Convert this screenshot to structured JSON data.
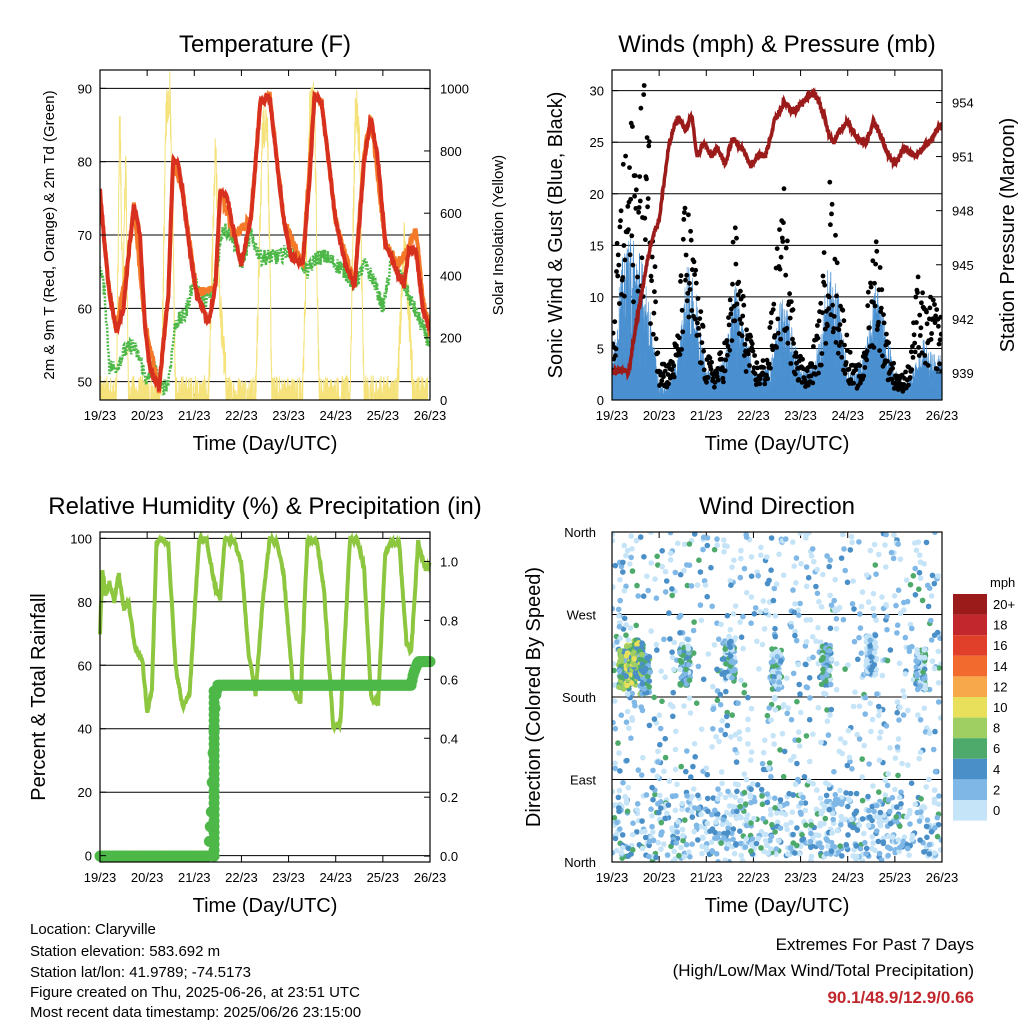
{
  "colors": {
    "temp_2m": "#d7301f",
    "temp_9m": "#f47a2a",
    "dewpoint": "#4db848",
    "solar": "#f5e27a",
    "wind": "#4a90d0",
    "gust": "#000000",
    "pressure": "#9b1b1b",
    "rh": "#8dc63f",
    "precip": "#4db848",
    "extremes": "#c1272d"
  },
  "info": {
    "location": "Location: Claryville",
    "elevation": "Station elevation: 583.692 m",
    "latlon": "Station lat/lon: 41.9789; -74.5173",
    "created": "Figure created on Thu, 2025-06-26, at 23:51 UTC",
    "recent": "Most recent data timestamp: 2025/06/26 23:15:00"
  },
  "extremes": {
    "title": "Extremes For Past 7 Days",
    "subtitle": "(High/Low/Max Wind/Total Precipitation)",
    "values": "90.1/48.9/12.9/0.66"
  },
  "chart_data": [
    {
      "id": "temperature",
      "type": "line",
      "title": "Temperature (F)",
      "xlabel": "Time (Day/UTC)",
      "ylabel": "2m & 9m T (Red, Orange) & 2m Td (Green)",
      "y2label": "Solar Insolation (Yellow)",
      "x_ticks": [
        "19/23",
        "20/23",
        "21/23",
        "22/23",
        "23/23",
        "24/23",
        "25/23",
        "26/23"
      ],
      "xlim": [
        0,
        7
      ],
      "ylim": [
        47.5,
        92.5
      ],
      "y_ticks": [
        50,
        60,
        70,
        80,
        90
      ],
      "y2lim": [
        0,
        1060
      ],
      "y2_ticks": [
        0,
        200,
        400,
        600,
        800,
        1000
      ],
      "series": [
        {
          "key": "temp_2m",
          "x": [
            0,
            0.08,
            0.2,
            0.35,
            0.5,
            0.6,
            0.72,
            0.85,
            0.95,
            1.05,
            1.25,
            1.45,
            1.55,
            1.65,
            1.75,
            1.9,
            2.05,
            2.3,
            2.45,
            2.55,
            2.7,
            2.85,
            3.0,
            3.2,
            3.4,
            3.6,
            3.75,
            3.9,
            4.05,
            4.3,
            4.45,
            4.55,
            4.7,
            4.85,
            5.0,
            5.2,
            5.4,
            5.6,
            5.75,
            5.9,
            6.05,
            6.3,
            6.45,
            6.55,
            6.7,
            6.85,
            7.0
          ],
          "y": [
            76,
            70,
            62,
            57,
            60,
            67,
            74,
            70,
            58,
            52,
            49,
            62,
            80,
            80,
            76,
            68,
            62,
            58,
            63,
            76,
            75,
            70,
            66,
            72,
            88,
            89,
            80,
            72,
            67,
            66,
            78,
            89,
            88,
            80,
            72,
            66,
            63,
            80,
            86,
            80,
            69,
            65,
            63,
            68,
            68,
            60,
            57
          ]
        },
        {
          "key": "temp_9m",
          "x": [
            0,
            0.2,
            0.35,
            0.6,
            0.72,
            0.95,
            1.25,
            1.45,
            1.55,
            1.75,
            2.05,
            2.45,
            2.55,
            2.85,
            3.2,
            3.4,
            3.6,
            3.9,
            4.3,
            4.55,
            4.7,
            5.0,
            5.4,
            5.6,
            5.75,
            6.05,
            6.3,
            6.55,
            6.7,
            6.85,
            7.0
          ],
          "y": [
            75,
            62,
            57,
            67,
            74,
            58,
            49,
            62,
            80,
            76,
            62,
            63,
            76,
            70,
            72,
            88,
            89,
            72,
            66,
            89,
            88,
            72,
            63,
            81,
            86,
            69,
            66,
            68,
            71,
            61,
            57
          ]
        },
        {
          "key": "dewpoint",
          "x": [
            0,
            0.1,
            0.2,
            0.35,
            0.5,
            0.7,
            0.85,
            1.0,
            1.15,
            1.3,
            1.45,
            1.6,
            1.8,
            2.0,
            2.2,
            2.4,
            2.6,
            2.8,
            3.0,
            3.2,
            3.4,
            3.6,
            3.8,
            4.0,
            4.2,
            4.4,
            4.6,
            4.8,
            5.0,
            5.2,
            5.4,
            5.6,
            5.8,
            6.0,
            6.2,
            6.4,
            6.6,
            6.8,
            7.0
          ],
          "y": [
            66,
            62,
            52,
            52,
            54,
            55,
            53,
            50,
            52,
            49,
            50,
            58,
            59,
            64,
            61,
            62,
            71,
            70,
            66,
            70,
            67,
            67,
            67,
            68,
            67,
            65,
            67,
            67,
            66,
            65,
            63,
            66,
            64,
            60,
            67,
            64,
            61,
            58,
            55
          ]
        },
        {
          "key": "solar",
          "x": [
            0,
            0.35,
            0.42,
            0.48,
            0.55,
            0.6,
            0.9,
            1.3,
            1.4,
            1.48,
            1.55,
            1.6,
            1.95,
            2.3,
            2.45,
            2.55,
            2.7,
            2.95,
            3.3,
            3.45,
            3.55,
            3.65,
            3.95,
            4.3,
            4.45,
            4.55,
            4.65,
            4.95,
            5.3,
            5.42,
            5.5,
            5.6,
            5.95,
            6.3,
            6.45,
            6.55,
            6.65,
            6.95
          ],
          "y": [
            0,
            0,
            950,
            300,
            800,
            0,
            0,
            0,
            920,
            1000,
            600,
            0,
            0,
            0,
            800,
            300,
            0,
            0,
            0,
            880,
            900,
            0,
            0,
            0,
            930,
            950,
            0,
            0,
            0,
            950,
            850,
            0,
            0,
            0,
            500,
            300,
            0,
            0
          ]
        }
      ]
    },
    {
      "id": "winds",
      "type": "scatter",
      "title": "Winds (mph) & Pressure (mb)",
      "xlabel": "Time (Day/UTC)",
      "ylabel": "Sonic Wind & Gust (Blue, Black)",
      "y2label": "Station Pressure (Maroon)",
      "x_ticks": [
        "19/23",
        "20/23",
        "21/23",
        "22/23",
        "23/23",
        "24/23",
        "25/23",
        "26/23"
      ],
      "xlim": [
        0,
        7
      ],
      "ylim": [
        0,
        32
      ],
      "y_ticks": [
        0,
        5,
        10,
        15,
        20,
        25,
        30
      ],
      "y2lim": [
        937.5,
        955.8
      ],
      "y2_ticks": [
        939,
        942,
        945,
        948,
        951,
        954
      ],
      "series": [
        {
          "key": "wind",
          "name": "Sonic Wind",
          "x": [
            0,
            0.2,
            0.4,
            0.6,
            0.8,
            1.0,
            1.2,
            1.4,
            1.6,
            1.8,
            2.0,
            2.2,
            2.4,
            2.6,
            2.8,
            3.0,
            3.2,
            3.4,
            3.6,
            3.8,
            4.0,
            4.2,
            4.4,
            4.6,
            4.8,
            5.0,
            5.2,
            5.4,
            5.6,
            5.8,
            6.0,
            6.2,
            6.4,
            6.6,
            6.8,
            7.0
          ],
          "y": [
            2,
            9,
            11,
            10,
            6,
            1,
            1,
            3,
            9,
            7,
            2,
            2,
            3,
            8,
            5,
            2,
            2,
            3,
            7,
            5,
            2,
            2,
            4,
            9,
            7,
            2,
            2,
            4,
            8,
            5,
            2,
            1,
            2,
            4,
            3,
            3
          ]
        },
        {
          "key": "gust",
          "name": "Gust",
          "x": [
            0,
            0.15,
            0.3,
            0.45,
            0.55,
            0.7,
            0.85,
            1.0,
            1.2,
            1.4,
            1.55,
            1.7,
            1.85,
            2.0,
            2.2,
            2.45,
            2.6,
            2.75,
            2.9,
            3.1,
            3.3,
            3.5,
            3.65,
            3.8,
            4.0,
            4.2,
            4.45,
            4.6,
            4.75,
            4.9,
            5.1,
            5.3,
            5.45,
            5.6,
            5.75,
            5.9,
            6.1,
            6.3,
            6.5,
            6.65,
            6.8,
            7.0
          ],
          "y": [
            4,
            17,
            22,
            25,
            21,
            30,
            18,
            4,
            3,
            6,
            18,
            14,
            9,
            4,
            3,
            6,
            16,
            10,
            6,
            3,
            4,
            13,
            18,
            9,
            4,
            3,
            9,
            20,
            14,
            8,
            3,
            3,
            10,
            16,
            9,
            4,
            2,
            3,
            11,
            8,
            9,
            7
          ]
        },
        {
          "key": "pressure",
          "name": "Station Pressure",
          "axis": "y2",
          "x": [
            0,
            0.2,
            0.35,
            0.5,
            0.7,
            0.85,
            1.0,
            1.2,
            1.3,
            1.4,
            1.55,
            1.7,
            1.8,
            1.95,
            2.1,
            2.25,
            2.4,
            2.55,
            2.75,
            2.95,
            3.1,
            3.25,
            3.45,
            3.65,
            3.85,
            4.05,
            4.2,
            4.35,
            4.5,
            4.6,
            4.7,
            4.85,
            5.0,
            5.2,
            5.4,
            5.55,
            5.7,
            5.85,
            6.0,
            6.2,
            6.4,
            6.6,
            6.8,
            6.9,
            7.0
          ],
          "y": [
            939,
            939.2,
            939,
            941.5,
            944.5,
            946.5,
            947.5,
            951.5,
            952.5,
            953.2,
            952.5,
            953.2,
            951,
            951.8,
            951,
            951.5,
            950.5,
            952,
            951.5,
            950.5,
            951.2,
            951,
            953,
            954,
            953.5,
            954,
            954.5,
            954.3,
            953.2,
            952.3,
            951.8,
            952.5,
            953,
            952,
            951.8,
            953,
            952.2,
            951.2,
            950.5,
            951.5,
            951,
            951.5,
            952,
            952.5,
            952.8
          ]
        }
      ]
    },
    {
      "id": "humidity",
      "type": "line",
      "title": "Relative Humidity (%) & Precipitation (in)",
      "xlabel": "Time (Day/UTC)",
      "ylabel": "Percent & Total Rainfall",
      "x_ticks": [
        "19/23",
        "20/23",
        "21/23",
        "22/23",
        "23/23",
        "24/23",
        "25/23",
        "26/23"
      ],
      "xlim": [
        0,
        7
      ],
      "ylim": [
        -2,
        102
      ],
      "y_ticks": [
        0,
        20,
        40,
        60,
        80,
        100
      ],
      "y2lim": [
        -0.02,
        1.1
      ],
      "y2_ticks": [
        0.0,
        0.2,
        0.4,
        0.6,
        0.8,
        1.0
      ],
      "series": [
        {
          "key": "rh",
          "name": "Relative Humidity",
          "x": [
            0,
            0.05,
            0.12,
            0.2,
            0.3,
            0.4,
            0.5,
            0.6,
            0.75,
            0.9,
            1.0,
            1.1,
            1.2,
            1.3,
            1.45,
            1.6,
            1.75,
            1.9,
            2.1,
            2.25,
            2.45,
            2.55,
            2.65,
            2.85,
            3.0,
            3.15,
            3.3,
            3.45,
            3.6,
            3.75,
            3.9,
            4.1,
            4.25,
            4.4,
            4.6,
            4.75,
            4.95,
            5.1,
            5.3,
            5.45,
            5.6,
            5.75,
            5.9,
            6.05,
            6.2,
            6.35,
            6.5,
            6.6,
            6.75,
            6.9,
            7.0
          ],
          "y": [
            70,
            90,
            82,
            86,
            80,
            89,
            78,
            80,
            65,
            62,
            45,
            52,
            99,
            100,
            98,
            60,
            47,
            51,
            99,
            100,
            84,
            81,
            100,
            99,
            92,
            64,
            51,
            80,
            100,
            99,
            88,
            52,
            48,
            100,
            99,
            84,
            40,
            42,
            99,
            100,
            91,
            50,
            48,
            95,
            99,
            98,
            67,
            64,
            99,
            90,
            92
          ]
        },
        {
          "key": "precip",
          "name": "Total Precipitation",
          "axis": "y2",
          "x": [
            0,
            0.5,
            1.0,
            1.5,
            2.3,
            2.36,
            2.4,
            2.45,
            2.5,
            2.6,
            3.5,
            4.5,
            5.5,
            6.3,
            6.6,
            6.65,
            6.75,
            7.0
          ],
          "y": [
            0,
            0,
            0,
            0,
            0,
            0.15,
            0.35,
            0.54,
            0.58,
            0.58,
            0.58,
            0.58,
            0.58,
            0.58,
            0.58,
            0.62,
            0.66,
            0.66
          ]
        }
      ]
    },
    {
      "id": "direction",
      "type": "scatter",
      "title": "Wind Direction",
      "xlabel": "Time (Day/UTC)",
      "ylabel": "Direction (Colored By Speed)",
      "x_ticks": [
        "19/23",
        "20/23",
        "21/23",
        "22/23",
        "23/23",
        "24/23",
        "25/23",
        "26/23"
      ],
      "xlim": [
        0,
        7
      ],
      "y_ticks": [
        "North",
        "East",
        "South",
        "West",
        "North"
      ],
      "ylim": [
        0,
        360
      ],
      "legend_title": "mph",
      "legend_labels": [
        "20+",
        "18",
        "16",
        "14",
        "12",
        "10",
        "8",
        "6",
        "4",
        "2",
        "0"
      ],
      "legend_colors": [
        "#9b1b1b",
        "#c1272d",
        "#e0402a",
        "#f26a2e",
        "#f6a84a",
        "#e8e05a",
        "#9fce62",
        "#4daa6a",
        "#4a8fc8",
        "#7fb8e6",
        "#c6e4f7"
      ],
      "clusters": [
        {
          "x": 0.25,
          "dir": 210,
          "speed": 9
        },
        {
          "x": 0.4,
          "dir": 215,
          "speed": 11
        },
        {
          "x": 0.55,
          "dir": 220,
          "speed": 10
        },
        {
          "x": 0.7,
          "dir": 205,
          "speed": 8
        },
        {
          "x": 1.55,
          "dir": 215,
          "speed": 7
        },
        {
          "x": 2.5,
          "dir": 220,
          "speed": 6
        },
        {
          "x": 3.5,
          "dir": 210,
          "speed": 6
        },
        {
          "x": 4.55,
          "dir": 215,
          "speed": 7
        },
        {
          "x": 5.5,
          "dir": 225,
          "speed": 5
        },
        {
          "x": 6.55,
          "dir": 210,
          "speed": 6
        }
      ]
    }
  ]
}
